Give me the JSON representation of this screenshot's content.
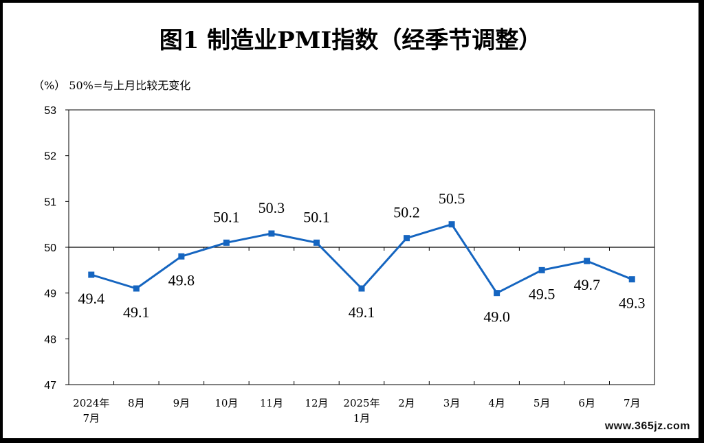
{
  "title": "图1  制造业PMI指数（经季节调整）",
  "unit_note": "（%） 50%=与上月比较无变化",
  "watermark": "www.365jz.com",
  "chart_data": {
    "type": "line",
    "title": "图1  制造业PMI指数（经季节调整）",
    "ylabel": "（%）",
    "reference_line": 50,
    "reference_note": "50%=与上月比较无变化",
    "ylim": [
      47,
      53
    ],
    "yticks": [
      47,
      48,
      49,
      50,
      51,
      52,
      53
    ],
    "categories": [
      [
        "2024年",
        "7月"
      ],
      [
        "8月"
      ],
      [
        "9月"
      ],
      [
        "10月"
      ],
      [
        "11月"
      ],
      [
        "12月"
      ],
      [
        "2025年",
        "1月"
      ],
      [
        "2月"
      ],
      [
        "3月"
      ],
      [
        "4月"
      ],
      [
        "5月"
      ],
      [
        "6月"
      ],
      [
        "7月"
      ]
    ],
    "values": [
      49.4,
      49.1,
      49.8,
      50.1,
      50.3,
      50.1,
      49.1,
      50.2,
      50.5,
      49.0,
      49.5,
      49.7,
      49.3
    ],
    "value_labels": [
      "49.4",
      "49.1",
      "49.8",
      "50.1",
      "50.3",
      "50.1",
      "49.1",
      "50.2",
      "50.5",
      "49.0",
      "49.5",
      "49.7",
      "49.3"
    ],
    "label_position": [
      "below",
      "below",
      "below",
      "above",
      "above",
      "above",
      "below",
      "above",
      "above",
      "below",
      "below",
      "below",
      "below"
    ],
    "line_color": "#1565C0",
    "grid": false,
    "legend": "none"
  }
}
